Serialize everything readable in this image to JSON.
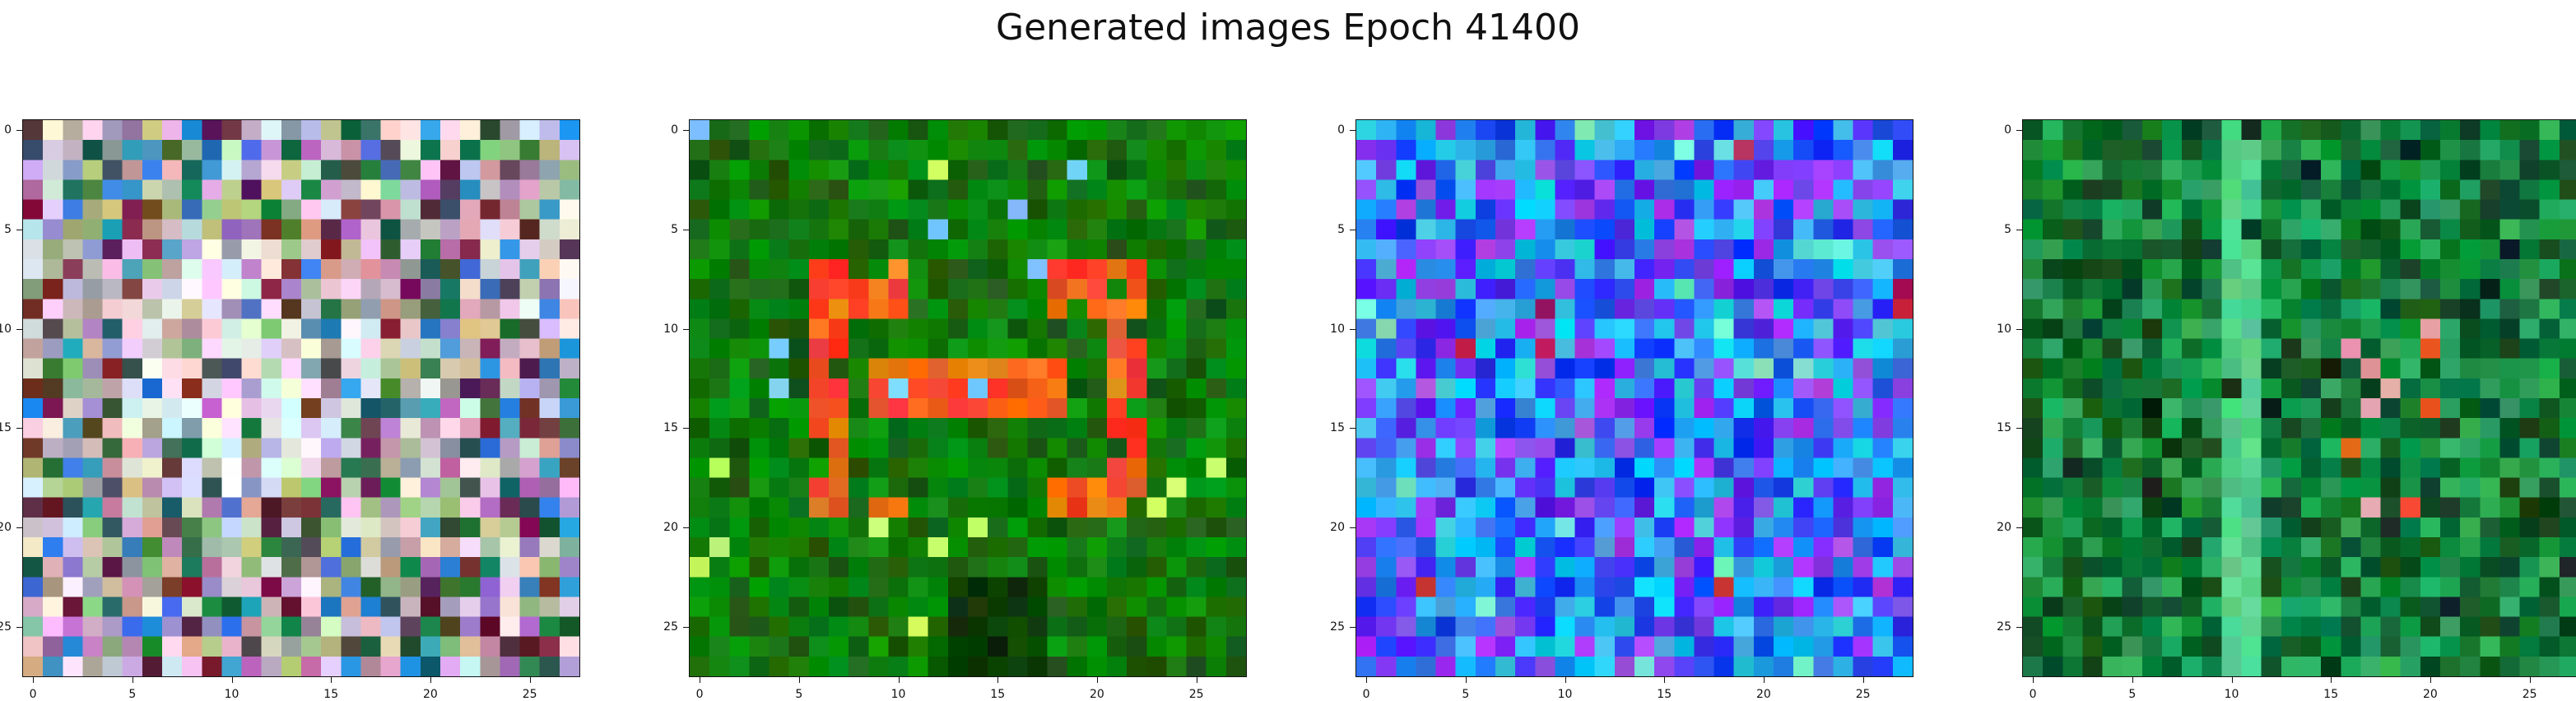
{
  "title": "Generated images Epoch 41400",
  "chart_data": [
    {
      "type": "heatmap",
      "image": "generated-image-1",
      "dominant_colors": [
        "#d9c3d4",
        "#e8dbe2",
        "#c2b49a",
        "#a77fb5",
        "#9fb88f",
        "#6d2a3e",
        "#2d6a48",
        "#3a8ad0"
      ],
      "xlim": [
        0,
        27
      ],
      "ylim": [
        27,
        0
      ],
      "xticks": [
        0,
        5,
        10,
        15,
        20,
        25
      ],
      "yticks": [
        0,
        5,
        10,
        15,
        20,
        25
      ]
    },
    {
      "type": "heatmap",
      "image": "generated-image-2",
      "dominant_colors": [
        "#0f7a08",
        "#078f0a",
        "#1a5f10",
        "#f04b2c",
        "#ff3b2a",
        "#f37b16",
        "#c7ff6a",
        "#7acbff"
      ],
      "xlim": [
        0,
        27
      ],
      "ylim": [
        27,
        0
      ],
      "xticks": [
        0,
        5,
        10,
        15,
        20,
        25
      ],
      "yticks": [
        0,
        5,
        10,
        15,
        20,
        25
      ]
    },
    {
      "type": "heatmap",
      "image": "generated-image-3",
      "dominant_colors": [
        "#38b6ea",
        "#2d7ef0",
        "#5a2bf2",
        "#13c8ee",
        "#9a3df2",
        "#1a3cf0",
        "#b0184a",
        "#6ff2c8"
      ],
      "xlim": [
        0,
        27
      ],
      "ylim": [
        27,
        0
      ],
      "xticks": [
        0,
        5,
        10,
        15,
        20,
        25
      ],
      "yticks": [
        0,
        5,
        10,
        15,
        20,
        25
      ]
    },
    {
      "type": "heatmap",
      "image": "generated-image-4",
      "dominant_colors": [
        "#0c6c2e",
        "#108a3d",
        "#2aa65b",
        "#0f4d22",
        "#0c2a16",
        "#ea5a2a",
        "#f0a0a0",
        "#55d08a"
      ],
      "xlim": [
        0,
        27
      ],
      "ylim": [
        27,
        0
      ],
      "xticks": [
        0,
        5,
        10,
        15,
        20,
        25
      ],
      "yticks": [
        0,
        5,
        10,
        15,
        20,
        25
      ]
    }
  ]
}
